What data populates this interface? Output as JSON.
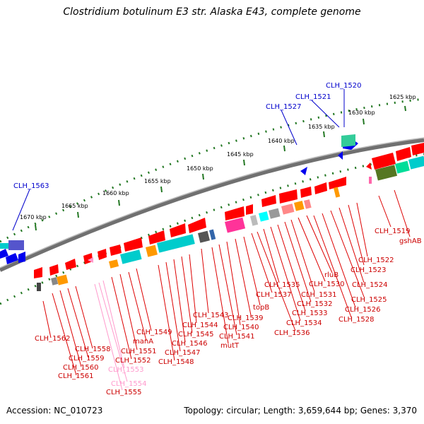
{
  "title": "Clostridium botulinum E3 str. Alaska E43, complete genome",
  "footer": {
    "accession": "Accession: NC_010723",
    "summary": "Topology: circular; Length: 3,659,644 bp; Genes: 3,370"
  },
  "colors": {
    "backbone": "#808080",
    "gene_red": "#ff0000",
    "label_red": "#cc0000",
    "label_blue": "#0000cc",
    "label_pink": "#ff99cc",
    "tick_green": "#227722"
  },
  "kbp_ticks": [
    "1625 kbp",
    "1630 kbp",
    "1635 kbp",
    "1640 kbp",
    "1645 kbp",
    "1650 kbp",
    "1655 kbp",
    "1660 kbp",
    "1665 kbp",
    "1670 kbp"
  ],
  "top_labels": [
    "CLH_1520",
    "CLH_1521",
    "CLH_1527",
    "CLH_1563"
  ],
  "bottom_labels": [
    "CLH_1519",
    "gshAB",
    "CLH_1522",
    "CLH_1523",
    "CLH_1524",
    "CLH_1525",
    "CLH_1526",
    "CLH_1528",
    "rluB",
    "CLH_1530",
    "CLH_1531",
    "CLH_1532",
    "CLH_1533",
    "CLH_1534",
    "CLH_1535",
    "CLH_1536",
    "CLH_1537",
    "topB",
    "CLH_1539",
    "CLH_1540",
    "CLH_1541",
    "mutT",
    "CLH_1543",
    "CLH_1544",
    "CLH_1545",
    "CLH_1546",
    "CLH_1547",
    "CLH_1548",
    "CLH_1549",
    "manA",
    "CLH_1551",
    "CLH_1552",
    "CLH_1553",
    "CLH_1554",
    "CLH_1555",
    "CLH_1558",
    "CLH_1559",
    "CLH_1560",
    "CLH_1561",
    "CLH_1562"
  ]
}
